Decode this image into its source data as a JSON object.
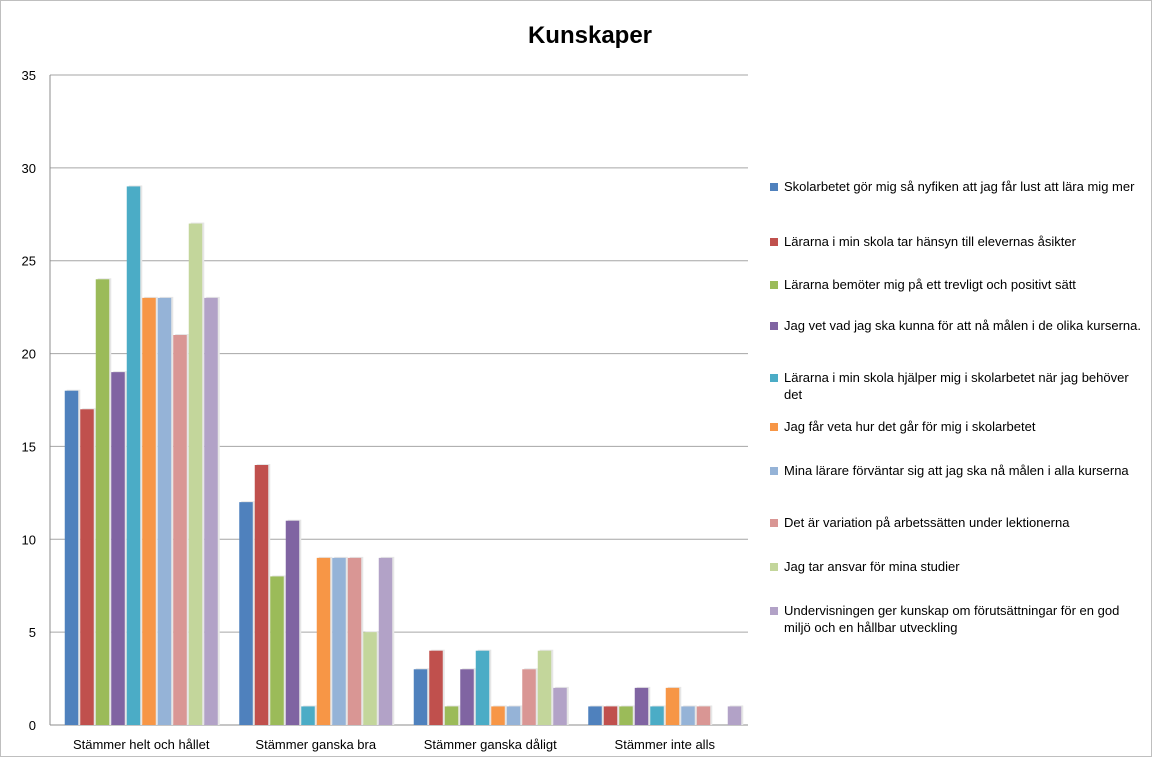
{
  "chart_data": {
    "type": "bar",
    "title": "Kunskaper",
    "xlabel": "",
    "ylabel": "",
    "ylim": [
      0,
      35
    ],
    "yticks": [
      0,
      5,
      10,
      15,
      20,
      25,
      30,
      35
    ],
    "grid": true,
    "legend_position": "right",
    "categories": [
      "Stämmer helt och hållet",
      "Stämmer ganska bra",
      "Stämmer ganska dåligt",
      "Stämmer inte alls"
    ],
    "series": [
      {
        "name": "Skolarbetet gör mig så nyfiken att jag får lust att lära mig mer",
        "color": "#4F81BD",
        "values": [
          18,
          12,
          3,
          1
        ]
      },
      {
        "name": "Lärarna i min skola tar hänsyn till elevernas åsikter",
        "color": "#C0504D",
        "values": [
          17,
          14,
          4,
          1
        ]
      },
      {
        "name": "Lärarna bemöter mig på ett trevligt och positivt sätt",
        "color": "#9BBB59",
        "values": [
          24,
          8,
          1,
          1
        ]
      },
      {
        "name": "Jag vet vad jag ska kunna för att nå målen i de olika kurserna.",
        "color": "#8064A2",
        "values": [
          19,
          11,
          3,
          2
        ]
      },
      {
        "name": "Lärarna i min skola hjälper mig i skolarbetet när jag behöver det",
        "color": "#4BACC6",
        "values": [
          29,
          1,
          4,
          1
        ]
      },
      {
        "name": "Jag får veta hur det går för mig i skolarbetet",
        "color": "#F79646",
        "values": [
          23,
          9,
          1,
          2
        ]
      },
      {
        "name": "Mina lärare förväntar sig att jag ska nå målen i alla kurserna",
        "color": "#95B3D7",
        "values": [
          23,
          9,
          1,
          1
        ]
      },
      {
        "name": "Det är variation på arbetssätten under lektionerna",
        "color": "#D99694",
        "values": [
          21,
          9,
          3,
          1
        ]
      },
      {
        "name": "Jag tar ansvar för mina studier",
        "color": "#C3D69B",
        "values": [
          27,
          5,
          4,
          0
        ]
      },
      {
        "name": "Undervisningen ger kunskap om förutsättningar för en god miljö och en hållbar utveckling",
        "color": "#B2A2C7",
        "values": [
          23,
          9,
          2,
          1
        ]
      }
    ]
  }
}
